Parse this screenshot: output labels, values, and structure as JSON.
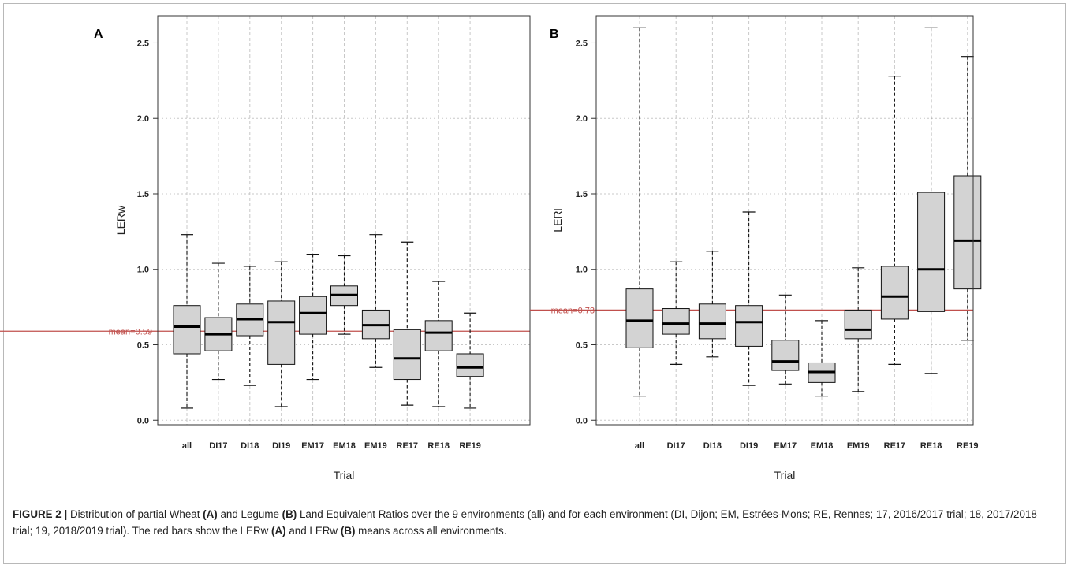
{
  "caption": {
    "label": "FIGURE 2 |",
    "parts": [
      " Distribution of partial Wheat ",
      "(A)",
      " and Legume ",
      "(B)",
      " Land Equivalent Ratios over the 9 environments (all) and for each environment (DI, Dijon; EM, Estrées-Mons; RE, Rennes; 17, 2016/2017 trial; 18, 2017/2018 trial; 19, 2018/2019 trial). The red bars show the LERw ",
      "(A)",
      " and LERw ",
      "(B)",
      " means across all environments."
    ]
  },
  "colors": {
    "box_fill": "#d3d3d3",
    "mean_line": "#c0504d",
    "mean_text": "#c0504d",
    "grid": "#c8c8c8"
  },
  "chart_data": [
    {
      "type": "boxplot",
      "panel_label": "A",
      "xlabel": "Trial",
      "ylabel": "LERw",
      "categories": [
        "all",
        "DI17",
        "DI18",
        "DI19",
        "EM17",
        "EM18",
        "EM19",
        "RE17",
        "RE18",
        "RE19"
      ],
      "yticks": [
        "0.0",
        "0.5",
        "1.0",
        "1.5",
        "2.0",
        "2.5"
      ],
      "ylim": [
        -0.03,
        2.68
      ],
      "grid": true,
      "mean": 0.59,
      "mean_label": "mean=0.59",
      "boxes": [
        {
          "min": 0.08,
          "q1": 0.44,
          "median": 0.62,
          "q3": 0.76,
          "max": 1.23
        },
        {
          "min": 0.27,
          "q1": 0.46,
          "median": 0.57,
          "q3": 0.68,
          "max": 1.04
        },
        {
          "min": 0.23,
          "q1": 0.56,
          "median": 0.67,
          "q3": 0.77,
          "max": 1.02
        },
        {
          "min": 0.09,
          "q1": 0.37,
          "median": 0.65,
          "q3": 0.79,
          "max": 1.05
        },
        {
          "min": 0.27,
          "q1": 0.57,
          "median": 0.71,
          "q3": 0.82,
          "max": 1.1
        },
        {
          "min": 0.57,
          "q1": 0.76,
          "median": 0.83,
          "q3": 0.89,
          "max": 1.09
        },
        {
          "min": 0.35,
          "q1": 0.54,
          "median": 0.63,
          "q3": 0.73,
          "max": 1.23
        },
        {
          "min": 0.1,
          "q1": 0.27,
          "median": 0.41,
          "q3": 0.6,
          "max": 1.18
        },
        {
          "min": 0.09,
          "q1": 0.46,
          "median": 0.58,
          "q3": 0.66,
          "max": 0.92
        },
        {
          "min": 0.08,
          "q1": 0.29,
          "median": 0.35,
          "q3": 0.44,
          "max": 0.71
        }
      ]
    },
    {
      "type": "boxplot",
      "panel_label": "B",
      "xlabel": "Trial",
      "ylabel": "LERl",
      "categories": [
        "all",
        "DI17",
        "DI18",
        "DI19",
        "EM17",
        "EM18",
        "EM19",
        "RE17",
        "RE18",
        "RE19"
      ],
      "yticks": [
        "0.0",
        "0.5",
        "1.0",
        "1.5",
        "2.0",
        "2.5"
      ],
      "ylim": [
        -0.03,
        2.68
      ],
      "grid": true,
      "mean": 0.73,
      "mean_label": "mean=0.73",
      "boxes": [
        {
          "min": 0.16,
          "q1": 0.48,
          "median": 0.66,
          "q3": 0.87,
          "max": 2.6
        },
        {
          "min": 0.37,
          "q1": 0.57,
          "median": 0.64,
          "q3": 0.74,
          "max": 1.05
        },
        {
          "min": 0.42,
          "q1": 0.54,
          "median": 0.64,
          "q3": 0.77,
          "max": 1.12
        },
        {
          "min": 0.23,
          "q1": 0.49,
          "median": 0.65,
          "q3": 0.76,
          "max": 1.38
        },
        {
          "min": 0.24,
          "q1": 0.33,
          "median": 0.39,
          "q3": 0.53,
          "max": 0.83
        },
        {
          "min": 0.16,
          "q1": 0.25,
          "median": 0.32,
          "q3": 0.38,
          "max": 0.66
        },
        {
          "min": 0.19,
          "q1": 0.54,
          "median": 0.6,
          "q3": 0.73,
          "max": 1.01
        },
        {
          "min": 0.37,
          "q1": 0.67,
          "median": 0.82,
          "q3": 1.02,
          "max": 2.28
        },
        {
          "min": 0.31,
          "q1": 0.72,
          "median": 1.0,
          "q3": 1.51,
          "max": 2.6
        },
        {
          "min": 0.53,
          "q1": 0.87,
          "median": 1.19,
          "q3": 1.62,
          "max": 2.41
        }
      ]
    }
  ]
}
